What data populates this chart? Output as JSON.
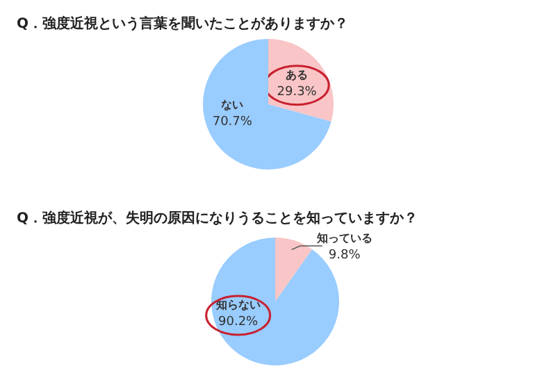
{
  "chart_data": [
    {
      "type": "pie",
      "title": "Q．強度近視という言葉を聞いたことがありますか？",
      "categories": [
        "ある",
        "ない"
      ],
      "values": [
        29.3,
        70.7
      ],
      "value_labels": [
        "29.3%",
        "70.7%"
      ],
      "colors": [
        "#f9c5c6",
        "#99ccff"
      ]
    },
    {
      "type": "pie",
      "title": "Q．強度近視が、失明の原因になりうることを知っていますか？",
      "categories": [
        "知っている",
        "知らない"
      ],
      "values": [
        9.8,
        90.2
      ],
      "value_labels": [
        "9.8%",
        "90.2%"
      ],
      "colors": [
        "#f9c5c6",
        "#99ccff"
      ]
    }
  ]
}
